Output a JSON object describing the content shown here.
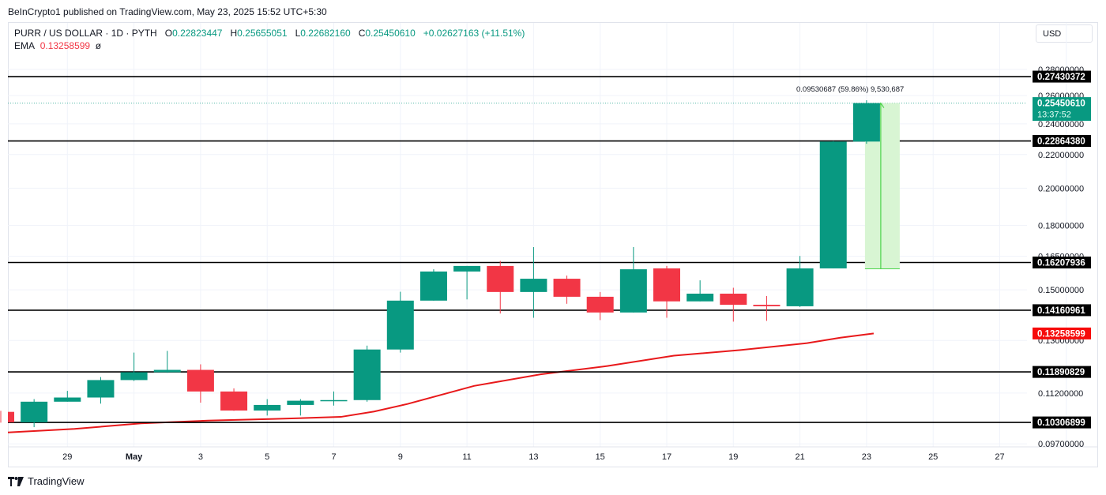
{
  "publisher": "BeInCrypto1 published on TradingView.com, May 23, 2025 15:52 UTC+5:30",
  "legend": {
    "symbol": "PURR / US DOLLAR · 1D · PYTH",
    "o_label": "O",
    "o": "0.22823447",
    "h_label": "H",
    "h": "0.25655051",
    "l_label": "L",
    "l": "0.22682160",
    "c_label": "C",
    "c": "0.25450610",
    "change": "+0.02627163 (+11.51%)",
    "ema_label": "EMA",
    "ema": "0.13258599",
    "ema_extra": "ø"
  },
  "currency": "USD",
  "logo": "TradingView",
  "colors": {
    "up": "#089981",
    "down": "#f23645",
    "ema": "#e8191b",
    "level": "#000000",
    "measure_fill": "#d8f5d3",
    "measure_line": "#4cd34c",
    "grid": "#f0f3fa"
  },
  "chart_data": {
    "type": "candlestick",
    "title": "PURR / US DOLLAR · 1D · PYTH",
    "xlabel": "",
    "ylabel": "USD",
    "scale": "log",
    "ylim": [
      0.095,
      0.29
    ],
    "x_ticks": [
      "29",
      "May",
      "3",
      "5",
      "7",
      "9",
      "11",
      "13",
      "15",
      "17",
      "19",
      "21",
      "23",
      "25",
      "27"
    ],
    "y_ticks": [
      "0.28000000",
      "0.26000000",
      "0.24000000",
      "0.22000000",
      "0.20000000",
      "0.18000000",
      "0.16500000",
      "0.15000000",
      "0.13000000",
      "0.11200000",
      "0.09700000"
    ],
    "candles": [
      {
        "date": "Apr 27",
        "o": 0.1062,
        "h": 0.1065,
        "l": 0.103,
        "c": 0.1031
      },
      {
        "date": "Apr 28",
        "o": 0.1031,
        "h": 0.1101,
        "l": 0.1017,
        "c": 0.1093
      },
      {
        "date": "Apr 29",
        "o": 0.1093,
        "h": 0.1127,
        "l": 0.1093,
        "c": 0.1106
      },
      {
        "date": "Apr 30",
        "o": 0.1106,
        "h": 0.1172,
        "l": 0.1087,
        "c": 0.1162
      },
      {
        "date": "May 1",
        "o": 0.1162,
        "h": 0.1256,
        "l": 0.1159,
        "c": 0.1188
      },
      {
        "date": "May 2",
        "o": 0.1188,
        "h": 0.1262,
        "l": 0.1186,
        "c": 0.1196
      },
      {
        "date": "May 3",
        "o": 0.1196,
        "h": 0.1215,
        "l": 0.109,
        "c": 0.1125
      },
      {
        "date": "May 4",
        "o": 0.1125,
        "h": 0.1135,
        "l": 0.1065,
        "c": 0.1066
      },
      {
        "date": "May 5",
        "o": 0.1066,
        "h": 0.1101,
        "l": 0.1051,
        "c": 0.1083
      },
      {
        "date": "May 6",
        "o": 0.1083,
        "h": 0.1101,
        "l": 0.1051,
        "c": 0.1096
      },
      {
        "date": "May 7",
        "o": 0.1096,
        "h": 0.1125,
        "l": 0.1081,
        "c": 0.1098
      },
      {
        "date": "May 8",
        "o": 0.1098,
        "h": 0.1281,
        "l": 0.1093,
        "c": 0.1267
      },
      {
        "date": "May 9",
        "o": 0.1267,
        "h": 0.1492,
        "l": 0.1256,
        "c": 0.1455
      },
      {
        "date": "May 10",
        "o": 0.1455,
        "h": 0.159,
        "l": 0.1455,
        "c": 0.158
      },
      {
        "date": "May 11",
        "o": 0.158,
        "h": 0.1605,
        "l": 0.146,
        "c": 0.1605
      },
      {
        "date": "May 12",
        "o": 0.1605,
        "h": 0.1628,
        "l": 0.1403,
        "c": 0.1491
      },
      {
        "date": "May 13",
        "o": 0.1491,
        "h": 0.1693,
        "l": 0.1386,
        "c": 0.1548
      },
      {
        "date": "May 14",
        "o": 0.1548,
        "h": 0.1562,
        "l": 0.1442,
        "c": 0.1471
      },
      {
        "date": "May 15",
        "o": 0.1471,
        "h": 0.1491,
        "l": 0.1377,
        "c": 0.1407
      },
      {
        "date": "May 16",
        "o": 0.1407,
        "h": 0.1693,
        "l": 0.1407,
        "c": 0.159
      },
      {
        "date": "May 17",
        "o": 0.1594,
        "h": 0.1605,
        "l": 0.1386,
        "c": 0.1452
      },
      {
        "date": "May 18",
        "o": 0.1452,
        "h": 0.1541,
        "l": 0.1452,
        "c": 0.1484
      },
      {
        "date": "May 19",
        "o": 0.1484,
        "h": 0.1509,
        "l": 0.1371,
        "c": 0.1438
      },
      {
        "date": "May 20",
        "o": 0.1438,
        "h": 0.1474,
        "l": 0.1374,
        "c": 0.1432
      },
      {
        "date": "May 21",
        "o": 0.1432,
        "h": 0.1651,
        "l": 0.1429,
        "c": 0.1594
      },
      {
        "date": "May 22",
        "o": 0.1594,
        "h": 0.2286,
        "l": 0.1594,
        "c": 0.2282
      },
      {
        "date": "May 23",
        "o": 0.22823447,
        "h": 0.25655051,
        "l": 0.2268216,
        "c": 0.2545061
      }
    ],
    "ema_series": [
      {
        "date": "Apr 27",
        "v": 0.1002
      },
      {
        "date": "Apr 29",
        "v": 0.1012
      },
      {
        "date": "May 1",
        "v": 0.1028
      },
      {
        "date": "May 3",
        "v": 0.1036
      },
      {
        "date": "May 5",
        "v": 0.1041
      },
      {
        "date": "May 7",
        "v": 0.1047
      },
      {
        "date": "May 8",
        "v": 0.1063
      },
      {
        "date": "May 9",
        "v": 0.1086
      },
      {
        "date": "May 11",
        "v": 0.1143
      },
      {
        "date": "May 13",
        "v": 0.1181
      },
      {
        "date": "May 15",
        "v": 0.1209
      },
      {
        "date": "May 17",
        "v": 0.1245
      },
      {
        "date": "May 19",
        "v": 0.1265
      },
      {
        "date": "May 21",
        "v": 0.129
      },
      {
        "date": "May 22",
        "v": 0.131
      },
      {
        "date": "May 23",
        "v": 0.13258599
      }
    ],
    "horizontal_levels": [
      "0.27430372",
      "0.22864380",
      "0.16207936",
      "0.14160961",
      "0.11890829",
      "0.10306899"
    ],
    "last_price": {
      "value": "0.25450610",
      "countdown": "13:37:52"
    },
    "ema_last": "0.13258599",
    "measure_annotation": {
      "text": "0.09530687 (59.86%) 9,530,687",
      "from": 0.1592,
      "to": 0.2545
    }
  }
}
